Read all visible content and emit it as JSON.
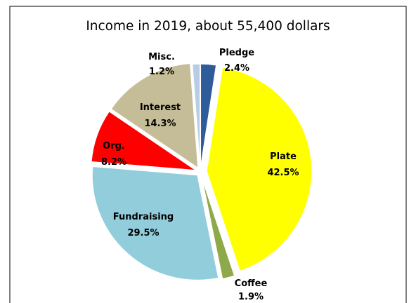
{
  "chart_data": {
    "type": "pie",
    "title": "Income in 2019, about 55,400 dollars",
    "slices": [
      {
        "name": "Pledge",
        "value": 2.4,
        "label": "2.4%",
        "color": "#2e5b9a",
        "label_color": "#000000"
      },
      {
        "name": "Plate",
        "value": 42.5,
        "label": "42.5%",
        "color": "#ffff00",
        "label_color": "#000000"
      },
      {
        "name": "Coffee",
        "value": 1.9,
        "label": "1.9%",
        "color": "#8ea94a",
        "label_color": "#000000"
      },
      {
        "name": "Fundraising",
        "value": 29.5,
        "label": "29.5%",
        "color": "#92cddc",
        "label_color": "#000000"
      },
      {
        "name": "Org.",
        "value": 8.2,
        "label": "8.2%",
        "color": "#ff0000",
        "label_color": "#000000"
      },
      {
        "name": "Interest",
        "value": 14.3,
        "label": "14.3%",
        "color": "#c5bd97",
        "label_color": "#000000"
      },
      {
        "name": "Misc.",
        "value": 1.2,
        "label": "1.2%",
        "color": "#b8cce4",
        "label_color": "#000000"
      }
    ]
  }
}
